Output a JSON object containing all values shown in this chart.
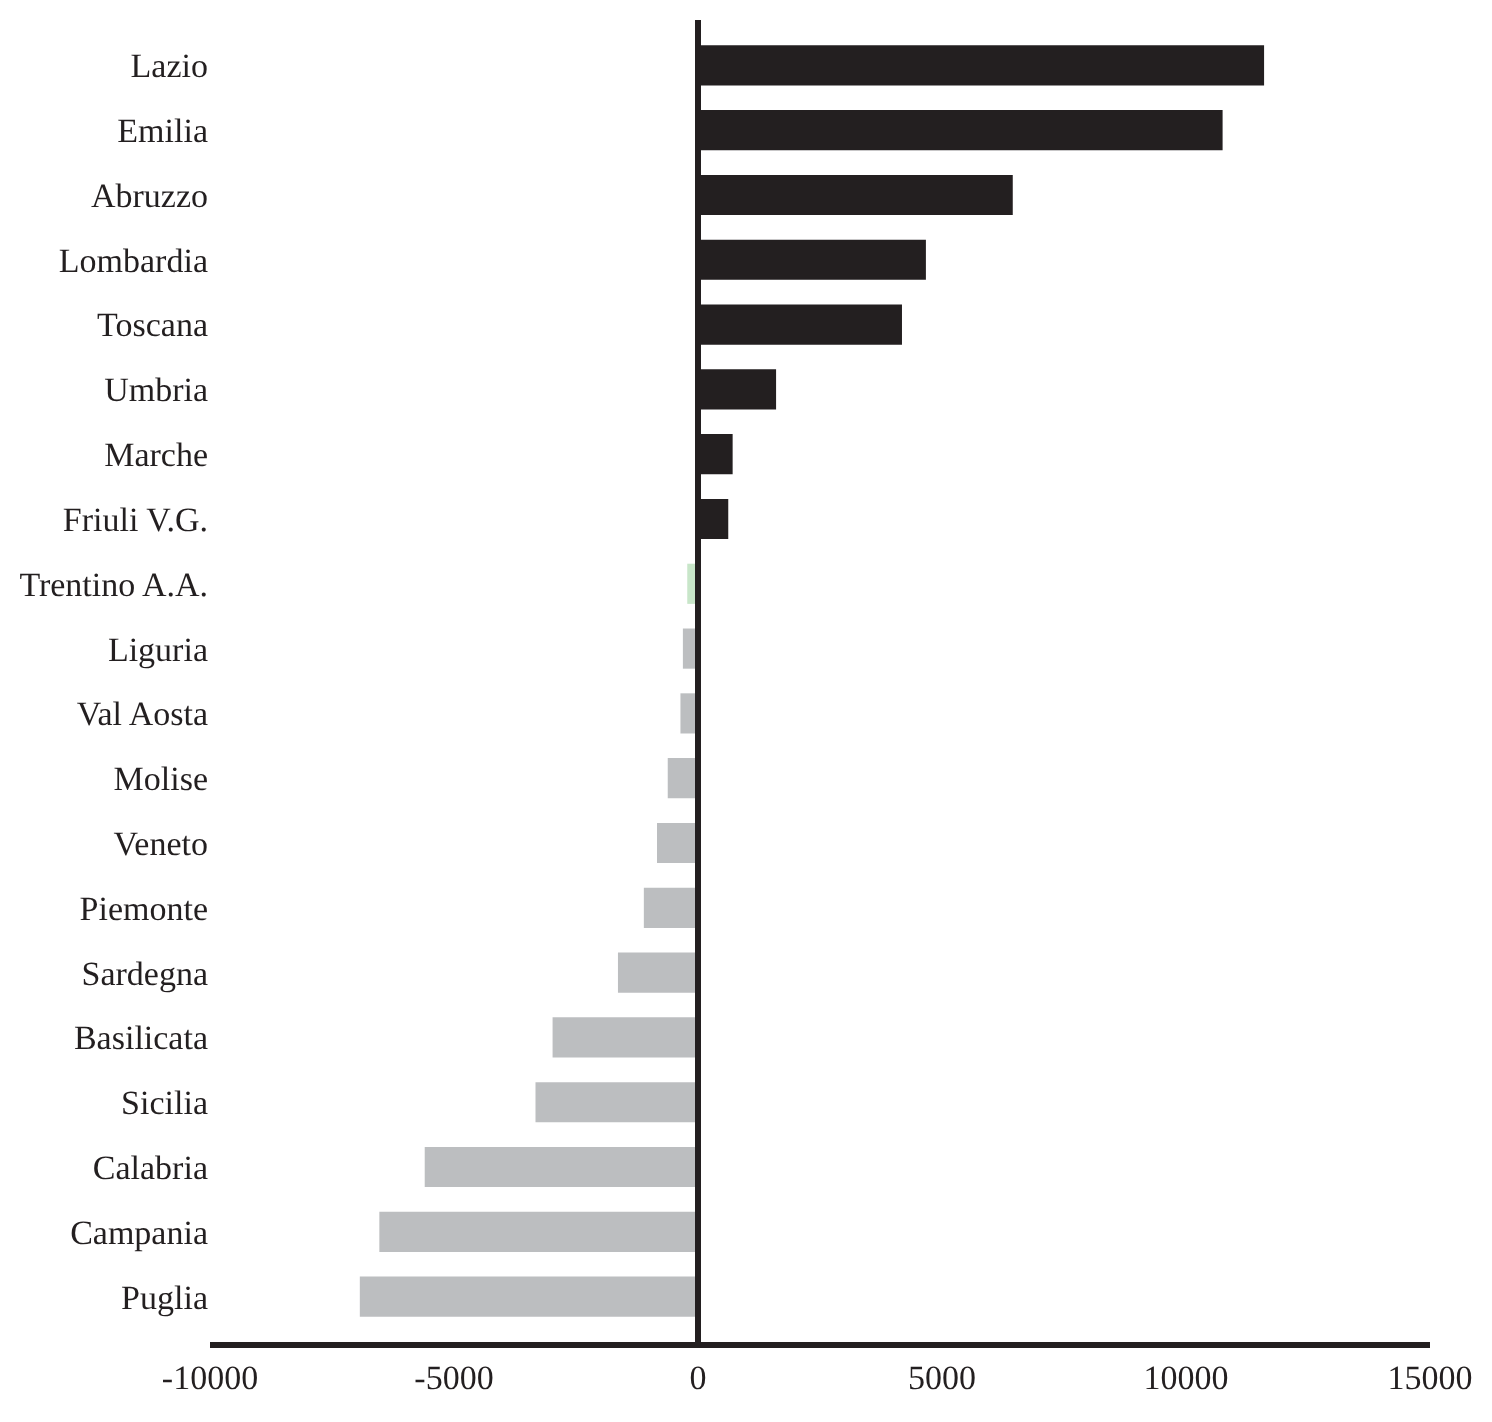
{
  "chart_data": {
    "type": "bar",
    "orientation": "horizontal",
    "categories": [
      "Lazio",
      "Emilia",
      "Abruzzo",
      "Lombardia",
      "Toscana",
      "Umbria",
      "Marche",
      "Friuli V.G.",
      "Trentino A.A.",
      "Liguria",
      "Val Aosta",
      "Molise",
      "Veneto",
      "Piemonte",
      "Sardegna",
      "Basilicata",
      "Sicilia",
      "Calabria",
      "Campania",
      "Puglia"
    ],
    "values": [
      11600,
      10750,
      6450,
      4670,
      4180,
      1600,
      710,
      620,
      -220,
      -310,
      -360,
      -620,
      -840,
      -1110,
      -1640,
      -2980,
      -3330,
      -5600,
      -6530,
      -6930
    ],
    "colors": [
      "#231f20",
      "#231f20",
      "#231f20",
      "#231f20",
      "#231f20",
      "#231f20",
      "#231f20",
      "#231f20",
      "#c8e6c9",
      "#bcbec0",
      "#bcbec0",
      "#bcbec0",
      "#bcbec0",
      "#bcbec0",
      "#bcbec0",
      "#bcbec0",
      "#bcbec0",
      "#bcbec0",
      "#bcbec0",
      "#bcbec0"
    ],
    "xlim": [
      -10000,
      15000
    ],
    "xticks": [
      -10000,
      -5000,
      0,
      5000,
      10000,
      15000
    ],
    "ref_lines": [
      {
        "axis": "x",
        "value": 0,
        "color": "#231f20"
      }
    ],
    "legend": false
  }
}
